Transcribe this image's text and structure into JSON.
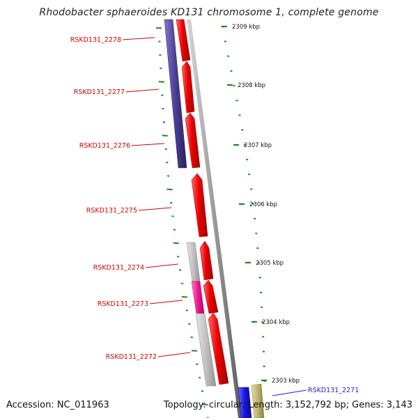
{
  "title": "Rhodobacter sphaeroides KD131 chromosome 1, complete genome",
  "footer": {
    "accession": "Accession: NC_011963",
    "topology": "Topology: circular; Length: 3,152,792 bp; Genes: 3,143"
  },
  "colors": {
    "gene_label": "#d40000",
    "gene_label_highlight": "#1f1fd0",
    "tick": "#1a8a1a",
    "backbone": "#9a9a9a",
    "forward_gene": "#ee0000",
    "navy_gene": "#4a3d94",
    "grey_gene": "#c2c2c2",
    "magenta_gene": "#f01890",
    "blue_gene": "#1414e0",
    "olive_gene": "#bfb46e"
  },
  "scale": {
    "unit": "kbp",
    "ticks": [
      {
        "label": "2309 kbp"
      },
      {
        "label": "2308 kbp"
      },
      {
        "label": "2307 kbp"
      },
      {
        "label": "2306 kbp"
      },
      {
        "label": "2305 kbp"
      },
      {
        "label": "2304 kbp"
      },
      {
        "label": "2303 kbp"
      }
    ]
  },
  "genes": [
    {
      "label": "RSKD131_2278",
      "highlight": false
    },
    {
      "label": "RSKD131_2277",
      "highlight": false
    },
    {
      "label": "RSKD131_2276",
      "highlight": false
    },
    {
      "label": "RSKD131_2275",
      "highlight": false
    },
    {
      "label": "RSKD131_2274",
      "highlight": false
    },
    {
      "label": "RSKD131_2273",
      "highlight": false
    },
    {
      "label": "RSKD131_2272",
      "highlight": false
    },
    {
      "label": "RSKD131_2271",
      "highlight": true
    }
  ]
}
